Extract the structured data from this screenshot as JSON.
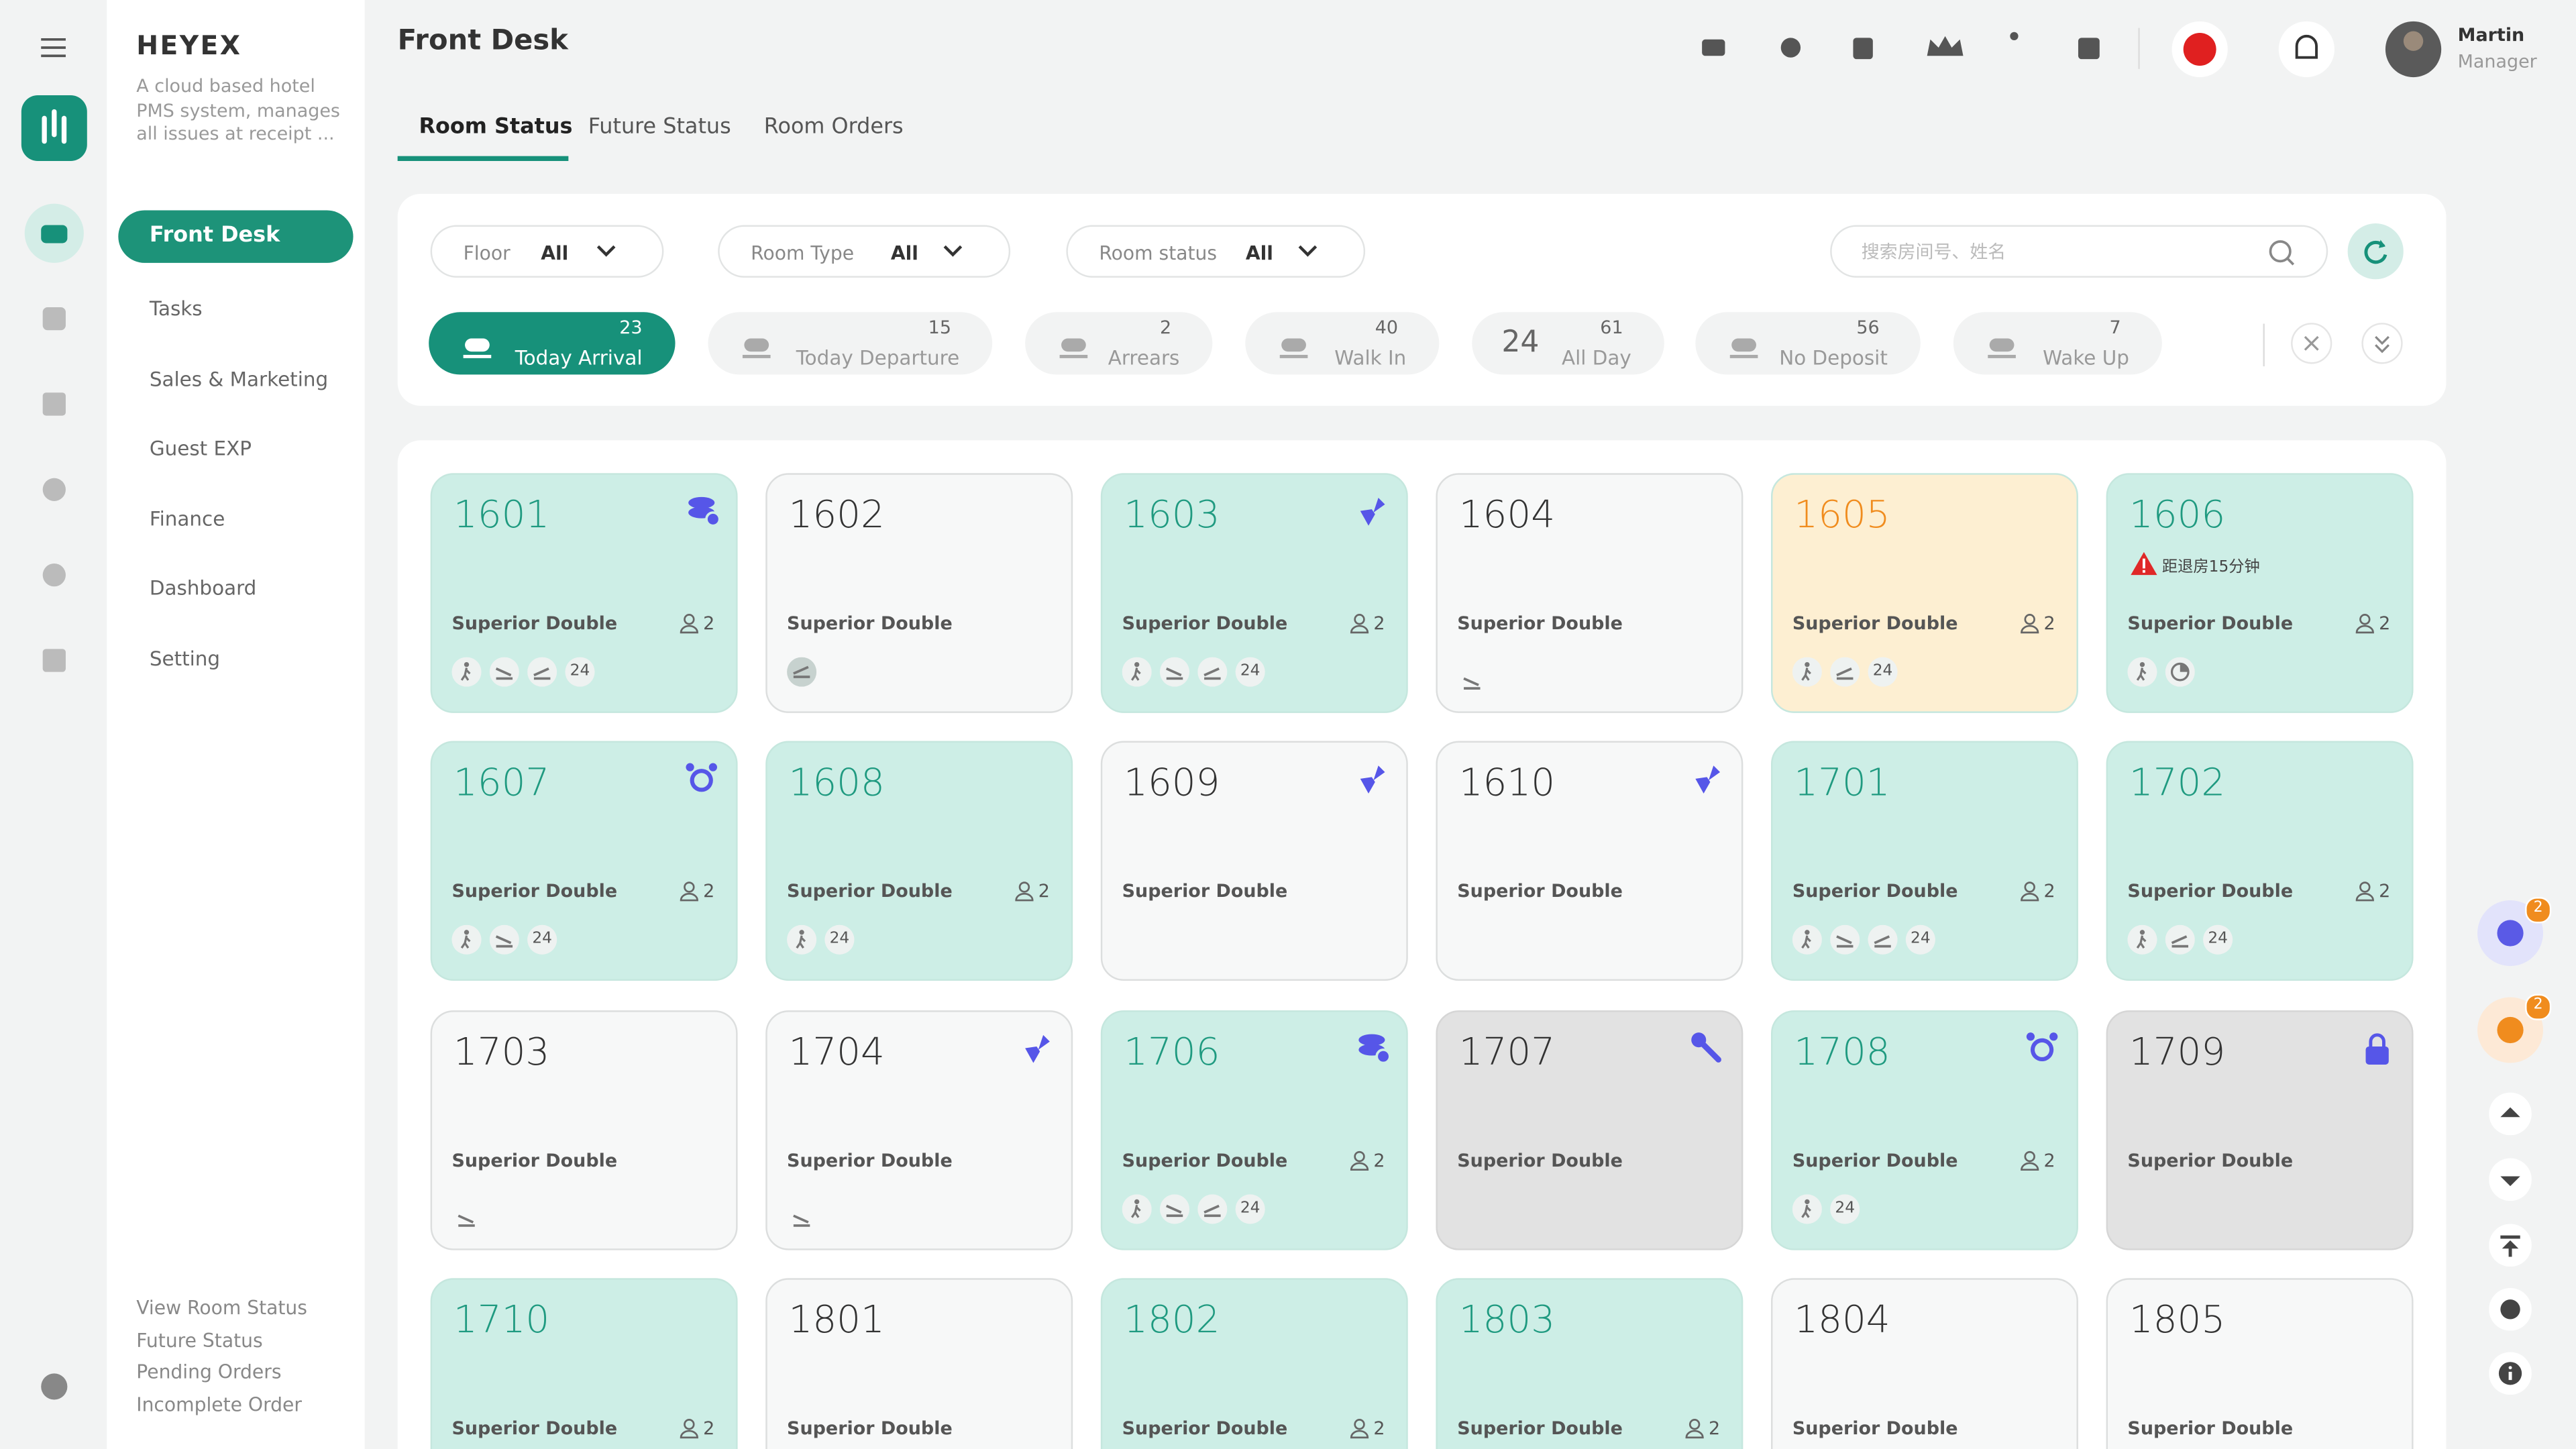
{
  "header": {
    "title": "Front Desk",
    "user_name": "Martin",
    "user_role": "Manager"
  },
  "sidebar": {
    "brand": "HEYEX",
    "description": "A cloud based hotel PMS system, manages all issues at receipt ...",
    "menu": [
      "Front Desk",
      "Tasks",
      "Sales & Marketing",
      "Guest EXP",
      "Finance",
      "Dashboard",
      "Setting"
    ],
    "links": [
      "View Room Status",
      "Future Status",
      "Pending Orders",
      "Incomplete Order"
    ]
  },
  "tabs": [
    "Room Status",
    "Future Status",
    "Room Orders"
  ],
  "filters": [
    {
      "label": "Floor",
      "value": "All"
    },
    {
      "label": "Room Type",
      "value": "All"
    },
    {
      "label": "Room status",
      "value": "All"
    }
  ],
  "search_placeholder": "搜索房间号、姓名",
  "quick_filters": [
    {
      "label": "Today Arrival",
      "count": 23
    },
    {
      "label": "Today Departure",
      "count": 15
    },
    {
      "label": "Arrears",
      "count": 2
    },
    {
      "label": "Walk In",
      "count": 40
    },
    {
      "label": "All Day",
      "count": 61,
      "icon": "24"
    },
    {
      "label": "No Deposit",
      "count": 56
    },
    {
      "label": "Wake Up",
      "count": 7
    }
  ],
  "rooms": [
    {
      "number": "1601",
      "type": "Superior Double",
      "guests": 2,
      "badge": 24,
      "color": "#cdeee6"
    },
    {
      "number": "1602",
      "type": "Superior Double",
      "color": "#f7f8f8"
    },
    {
      "number": "1603",
      "type": "Superior Double",
      "guests": 2,
      "badge": 24,
      "color": "#cdeee6"
    },
    {
      "number": "1604",
      "type": "Superior Double",
      "color": "#f7f8f8"
    },
    {
      "number": "1605",
      "type": "Superior Double",
      "guests": 2,
      "badge": 24,
      "color": "#fdefd2"
    },
    {
      "number": "1606",
      "type": "Superior Double",
      "guests": 2,
      "alert": "距退房15分钟",
      "color": "#cdeee6"
    },
    {
      "number": "1607",
      "type": "Superior Double",
      "guests": 2,
      "badge": 24,
      "color": "#cdeee6"
    },
    {
      "number": "1608",
      "type": "Superior Double",
      "guests": 2,
      "badge": 24,
      "color": "#cdeee6"
    },
    {
      "number": "1609",
      "type": "Superior Double",
      "color": "#f7f8f8"
    },
    {
      "number": "1610",
      "type": "Superior Double",
      "color": "#f7f8f8"
    },
    {
      "number": "1701",
      "type": "Superior Double",
      "guests": 2,
      "badge": 24,
      "color": "#cdeee6"
    },
    {
      "number": "1702",
      "type": "Superior Double",
      "guests": 2,
      "badge": 24,
      "color": "#cdeee6"
    },
    {
      "number": "1703",
      "type": "Superior Double",
      "color": "#f7f8f8"
    },
    {
      "number": "1704",
      "type": "Superior Double",
      "color": "#f7f8f8"
    },
    {
      "number": "1706",
      "type": "Superior Double",
      "guests": 2,
      "badge": 24,
      "color": "#cdeee6"
    },
    {
      "number": "1707",
      "type": "Superior Double",
      "color": "#e2e2e2"
    },
    {
      "number": "1708",
      "type": "Superior Double",
      "guests": 2,
      "badge": 24,
      "color": "#cdeee6"
    },
    {
      "number": "1709",
      "type": "Superior Double",
      "color": "#e2e2e2"
    },
    {
      "number": "1710",
      "type": "Superior Double",
      "guests": 2,
      "color": "#cdeee6"
    },
    {
      "number": "1801",
      "type": "Superior Double",
      "color": "#f7f8f8"
    },
    {
      "number": "1802",
      "type": "Superior Double",
      "guests": 2,
      "color": "#cdeee6"
    },
    {
      "number": "1803",
      "type": "Superior Double",
      "guests": 2,
      "color": "#cdeee6"
    },
    {
      "number": "1804",
      "type": "Superior Double",
      "color": "#f7f8f8"
    },
    {
      "number": "1805",
      "type": "Superior Double",
      "color": "#f7f8f8"
    }
  ],
  "floating_badges": [
    2,
    2
  ]
}
